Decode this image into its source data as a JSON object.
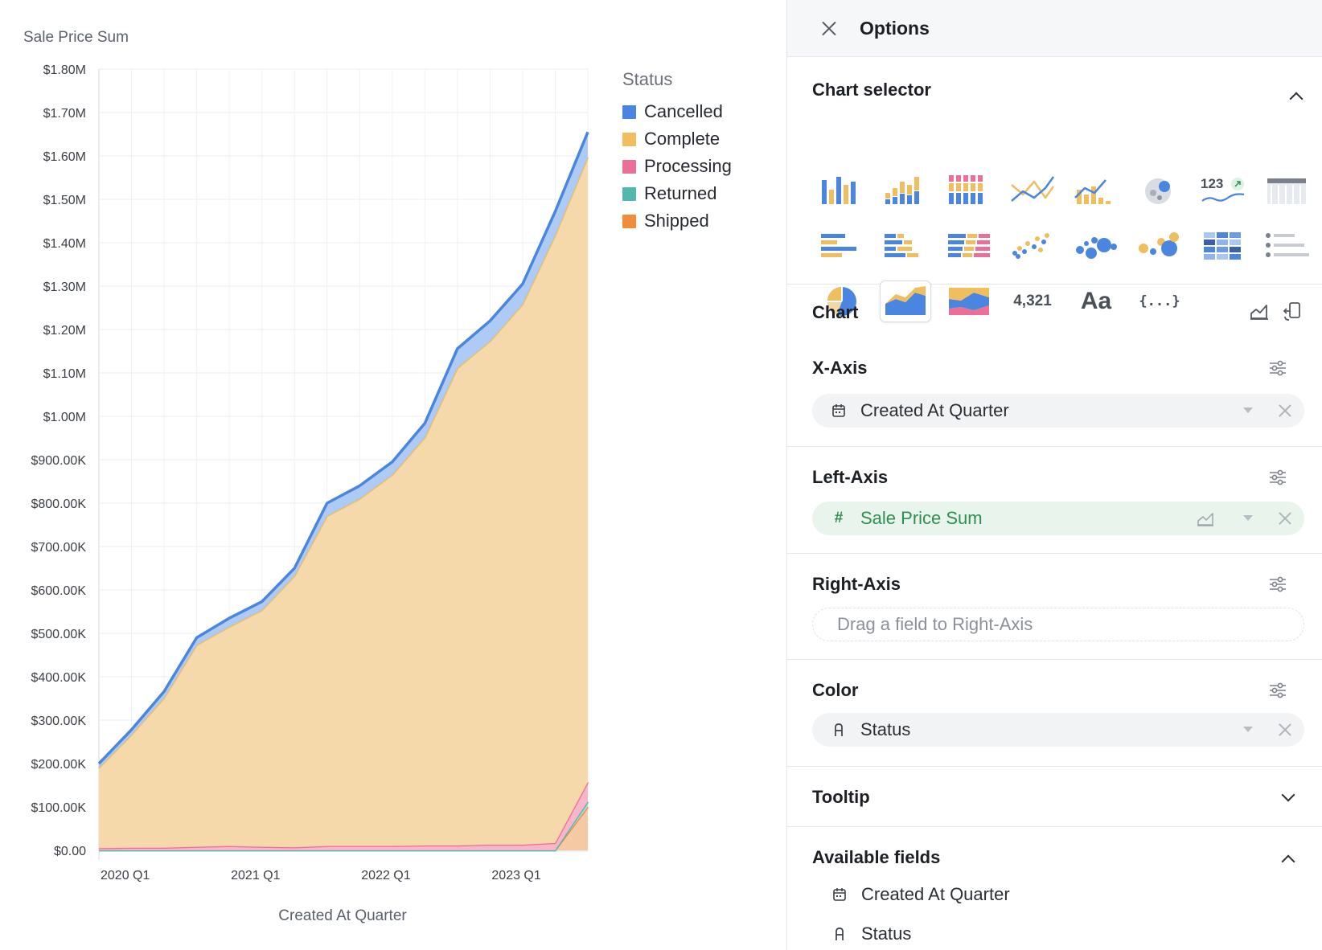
{
  "chart": {
    "y_axis_title": "Sale Price Sum",
    "x_axis_title": "Created At Quarter",
    "legend_title": "Status",
    "legend": [
      {
        "label": "Cancelled",
        "color": "#4a86e0"
      },
      {
        "label": "Complete",
        "color": "#f0bd5f"
      },
      {
        "label": "Processing",
        "color": "#ec6f96"
      },
      {
        "label": "Returned",
        "color": "#52b6b1"
      },
      {
        "label": "Shipped",
        "color": "#f08c3a"
      }
    ]
  },
  "chart_data": {
    "type": "area",
    "stacked": true,
    "title": "",
    "xlabel": "Created At Quarter",
    "ylabel": "Sale Price Sum",
    "ylim": [
      0,
      1800000
    ],
    "y_ticks": [
      "$0.00",
      "$100.00K",
      "$200.00K",
      "$300.00K",
      "$400.00K",
      "$500.00K",
      "$600.00K",
      "$700.00K",
      "$800.00K",
      "$900.00K",
      "$1.00M",
      "$1.10M",
      "$1.20M",
      "$1.30M",
      "$1.40M",
      "$1.50M",
      "$1.60M",
      "$1.70M",
      "$1.80M"
    ],
    "x": [
      "2020 Q1",
      "2020 Q2",
      "2020 Q3",
      "2020 Q4",
      "2021 Q1",
      "2021 Q2",
      "2021 Q3",
      "2021 Q4",
      "2022 Q1",
      "2022 Q2",
      "2022 Q3",
      "2022 Q4",
      "2023 Q1",
      "2023 Q2",
      "2023 Q3",
      "2023 Q4"
    ],
    "x_tick_labels": [
      "2020 Q1",
      "2021 Q1",
      "2022 Q1",
      "2023 Q1"
    ],
    "legend_position": "right",
    "grid": true,
    "series": [
      {
        "name": "Shipped",
        "values": [
          0,
          0,
          0,
          0,
          0,
          0,
          0,
          0,
          0,
          0,
          0,
          0,
          0,
          0,
          0,
          100000
        ]
      },
      {
        "name": "Returned",
        "values": [
          0,
          0,
          0,
          0,
          0,
          0,
          0,
          0,
          0,
          0,
          0,
          0,
          0,
          0,
          0,
          12000
        ]
      },
      {
        "name": "Processing",
        "values": [
          5000,
          6000,
          6000,
          8000,
          10000,
          8000,
          7000,
          10000,
          10000,
          10000,
          11000,
          11000,
          13000,
          13000,
          17000,
          45000
        ]
      },
      {
        "name": "Complete",
        "values": [
          185000,
          260000,
          345000,
          465000,
          505000,
          545000,
          625000,
          760000,
          800000,
          855000,
          940000,
          1100000,
          1160000,
          1245000,
          1400000,
          1440000
        ]
      },
      {
        "name": "Cancelled",
        "values": [
          10000,
          12000,
          15000,
          17000,
          20000,
          20000,
          18000,
          30000,
          30000,
          30000,
          33000,
          45000,
          47000,
          47000,
          55000,
          58000
        ]
      }
    ]
  },
  "panel": {
    "title": "Options",
    "chart_selector": "Chart selector",
    "chart_section": "Chart",
    "chart_icons": [
      "bar",
      "stacked-bar",
      "stacked-bar-100",
      "line",
      "bar-line",
      "geo",
      "number-trend",
      "table",
      "horizontal-bar",
      "stacked-horizontal-bar",
      "stacked-horizontal-bar-100",
      "scatter",
      "bubble",
      "bubble-color",
      "heatmap",
      "list",
      "pie",
      "area",
      "stacked-area",
      "number",
      "text",
      "json"
    ],
    "number_text": "4,321",
    "trend_text": "123",
    "text_icon": "Aa",
    "json_icon": "{...}",
    "x_axis": {
      "title": "X-Axis",
      "field": "Created At Quarter"
    },
    "left_axis": {
      "title": "Left-Axis",
      "field": "Sale Price Sum"
    },
    "right_axis": {
      "title": "Right-Axis",
      "placeholder": "Drag a field to Right-Axis"
    },
    "color": {
      "title": "Color",
      "field": "Status"
    },
    "tooltip": "Tooltip",
    "available_fields": {
      "title": "Available fields",
      "items": [
        "Created At Quarter",
        "Status"
      ]
    }
  }
}
